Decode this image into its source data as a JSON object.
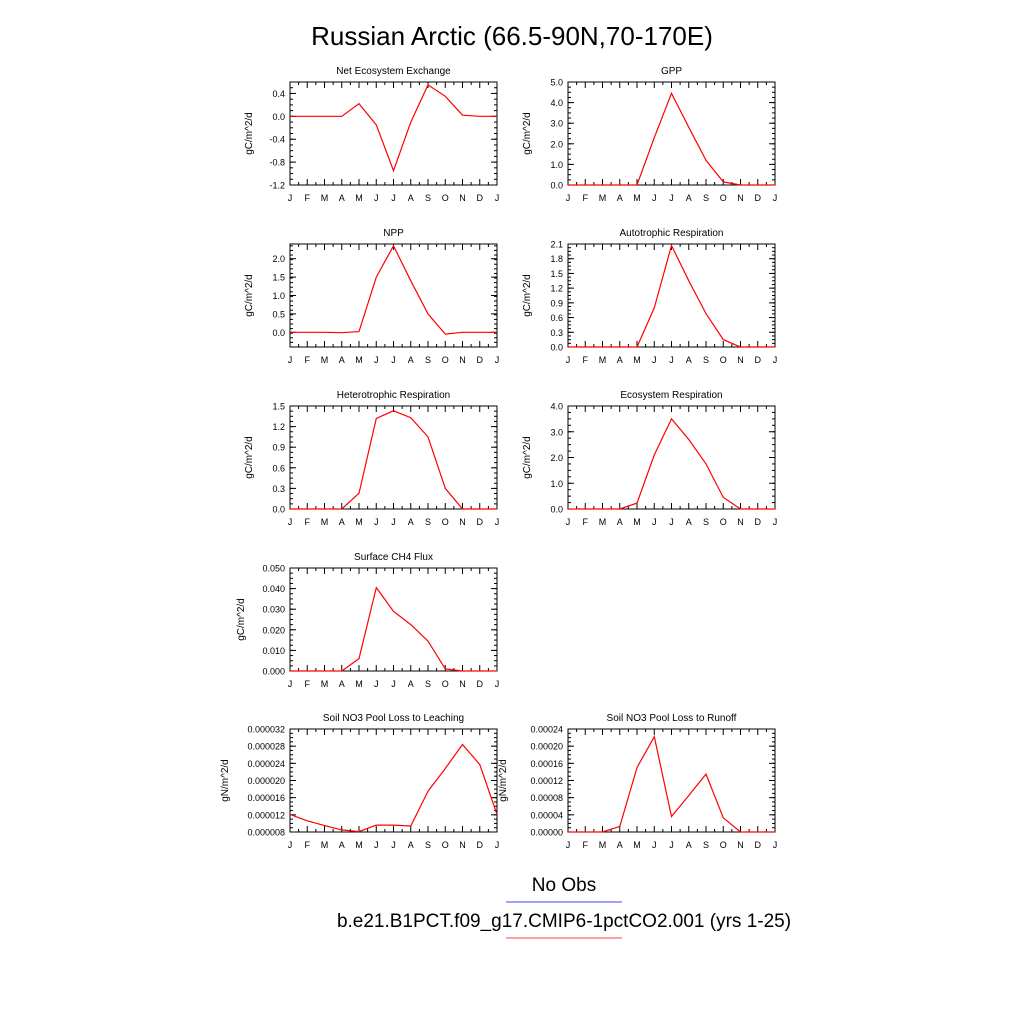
{
  "figure": {
    "title": "Russian Arctic (66.5-90N,70-170E)",
    "legend": [
      {
        "label": "No Obs",
        "color": "#8080ff"
      },
      {
        "label": "b.e21.B1PCT.f09_g17.CMIP6-1pctCO2.001 (yrs 1-25)",
        "color": "#ff8080"
      }
    ]
  },
  "month_labels": [
    "J",
    "F",
    "M",
    "A",
    "M",
    "J",
    "J",
    "A",
    "S",
    "O",
    "N",
    "D",
    "J"
  ],
  "line_color": "#ff0000",
  "chart_data": [
    {
      "type": "line",
      "title": "Net Ecosystem Exchange",
      "ylabel": "gC/m^2/d",
      "ylim": [
        -1.2,
        0.6
      ],
      "yticks": [
        -1.2,
        -0.8,
        -0.4,
        0.0,
        0.4
      ],
      "yticklabels": [
        "-1.2",
        "-0.8",
        "-0.4",
        "0.0",
        "0.4"
      ],
      "x": [
        "J",
        "F",
        "M",
        "A",
        "M",
        "J",
        "J",
        "A",
        "S",
        "O",
        "N",
        "D",
        "J"
      ],
      "values": [
        0.0,
        0.0,
        0.0,
        0.0,
        0.22,
        -0.15,
        -0.95,
        -0.1,
        0.55,
        0.35,
        0.02,
        0.0,
        0.0
      ]
    },
    {
      "type": "line",
      "title": "GPP",
      "ylabel": "gC/m^2/d",
      "ylim": [
        0,
        5.0
      ],
      "yticks": [
        0,
        1,
        2,
        3,
        4,
        5
      ],
      "yticklabels": [
        "0.0",
        "1.0",
        "2.0",
        "3.0",
        "4.0",
        "5.0"
      ],
      "x": [
        "J",
        "F",
        "M",
        "A",
        "M",
        "J",
        "J",
        "A",
        "S",
        "O",
        "N",
        "D",
        "J"
      ],
      "values": [
        0,
        0,
        0,
        0,
        0,
        2.3,
        4.45,
        2.8,
        1.2,
        0.15,
        0,
        0,
        0
      ]
    },
    {
      "type": "line",
      "title": "NPP",
      "ylabel": "gC/m^2/d",
      "ylim": [
        -0.4,
        2.4
      ],
      "yticks": [
        0,
        0.5,
        1.0,
        1.5,
        2.0
      ],
      "yticklabels": [
        "0.0",
        "0.5",
        "1.0",
        "1.5",
        "2.0"
      ],
      "x": [
        "J",
        "F",
        "M",
        "A",
        "M",
        "J",
        "J",
        "A",
        "S",
        "O",
        "N",
        "D",
        "J"
      ],
      "values": [
        0,
        0,
        0,
        -0.01,
        0.02,
        1.5,
        2.35,
        1.4,
        0.5,
        -0.05,
        0,
        0,
        0
      ]
    },
    {
      "type": "line",
      "title": "Autotrophic Respiration",
      "ylabel": "gC/m^2/d",
      "ylim": [
        0,
        2.1
      ],
      "yticks": [
        0,
        0.3,
        0.6,
        0.9,
        1.2,
        1.5,
        1.8,
        2.1
      ],
      "yticklabels": [
        "0.0",
        "0.3",
        "0.6",
        "0.9",
        "1.2",
        "1.5",
        "1.8",
        "2.1"
      ],
      "x": [
        "J",
        "F",
        "M",
        "A",
        "M",
        "J",
        "J",
        "A",
        "S",
        "O",
        "N",
        "D",
        "J"
      ],
      "values": [
        0,
        0,
        0,
        0,
        0,
        0.8,
        2.07,
        1.35,
        0.68,
        0.15,
        0,
        0,
        0
      ]
    },
    {
      "type": "line",
      "title": "Heterotrophic Respiration",
      "ylabel": "gC/m^2/d",
      "ylim": [
        0,
        1.5
      ],
      "yticks": [
        0,
        0.3,
        0.6,
        0.9,
        1.2,
        1.5
      ],
      "yticklabels": [
        "0.0",
        "0.3",
        "0.6",
        "0.9",
        "1.2",
        "1.5"
      ],
      "x": [
        "J",
        "F",
        "M",
        "A",
        "M",
        "J",
        "J",
        "A",
        "S",
        "O",
        "N",
        "D",
        "J"
      ],
      "values": [
        0,
        0,
        0,
        0,
        0.23,
        1.32,
        1.43,
        1.33,
        1.05,
        0.3,
        0,
        0,
        0
      ]
    },
    {
      "type": "line",
      "title": "Ecosystem Respiration",
      "ylabel": "gC/m^2/d",
      "ylim": [
        0,
        4.0
      ],
      "yticks": [
        0,
        1,
        2,
        3,
        4
      ],
      "yticklabels": [
        "0.0",
        "1.0",
        "2.0",
        "3.0",
        "4.0"
      ],
      "x": [
        "J",
        "F",
        "M",
        "A",
        "M",
        "J",
        "J",
        "A",
        "S",
        "O",
        "N",
        "D",
        "J"
      ],
      "values": [
        0,
        0,
        0,
        0,
        0.23,
        2.1,
        3.5,
        2.7,
        1.75,
        0.45,
        0,
        0,
        0
      ]
    },
    {
      "type": "line",
      "title": "Surface CH4 Flux",
      "ylabel": "gC/m^2/d",
      "ylim": [
        0,
        0.05
      ],
      "yticks": [
        0,
        0.01,
        0.02,
        0.03,
        0.04,
        0.05
      ],
      "yticklabels": [
        "0.000",
        "0.010",
        "0.020",
        "0.030",
        "0.040",
        "0.050"
      ],
      "x": [
        "J",
        "F",
        "M",
        "A",
        "M",
        "J",
        "J",
        "A",
        "S",
        "O",
        "N",
        "D",
        "J"
      ],
      "values": [
        0,
        0,
        0,
        0,
        0.006,
        0.0405,
        0.029,
        0.0225,
        0.0145,
        0.001,
        0,
        0,
        0
      ]
    },
    {
      "type": "line",
      "title": "Soil NO3 Pool Loss to Leaching",
      "ylabel": "gN/m^2/d",
      "ylim": [
        8e-06,
        3.2e-05
      ],
      "yticks": [
        8e-06,
        1.2e-05,
        1.6e-05,
        2e-05,
        2.4e-05,
        2.8e-05,
        3.2e-05
      ],
      "yticklabels": [
        "0.000008",
        "0.000012",
        "0.000016",
        "0.000020",
        "0.000024",
        "0.000028",
        "0.000032"
      ],
      "x": [
        "J",
        "F",
        "M",
        "A",
        "M",
        "J",
        "J",
        "A",
        "S",
        "O",
        "N",
        "D",
        "J"
      ],
      "values": [
        1.21e-05,
        1.06e-05,
        9.5e-06,
        8.5e-06,
        8.1e-06,
        9.6e-06,
        9.6e-06,
        9.4e-06,
        1.75e-05,
        2.28e-05,
        2.84e-05,
        2.37e-05,
        1.21e-05
      ]
    },
    {
      "type": "line",
      "title": "Soil NO3 Pool Loss to Runoff",
      "ylabel": "gN/m^2/d",
      "ylim": [
        0,
        0.00024
      ],
      "yticks": [
        0,
        4e-05,
        8e-05,
        0.00012,
        0.00016,
        0.0002,
        0.00024
      ],
      "yticklabels": [
        "0.00000",
        "0.00004",
        "0.00008",
        "0.00012",
        "0.00016",
        "0.00020",
        "0.00024"
      ],
      "x": [
        "J",
        "F",
        "M",
        "A",
        "M",
        "J",
        "J",
        "A",
        "S",
        "O",
        "N",
        "D",
        "J"
      ],
      "values": [
        0,
        0,
        0,
        1.3e-05,
        0.00015,
        0.000222,
        3.6e-05,
        8.5e-05,
        0.000135,
        3.3e-05,
        0,
        0,
        0
      ]
    }
  ]
}
